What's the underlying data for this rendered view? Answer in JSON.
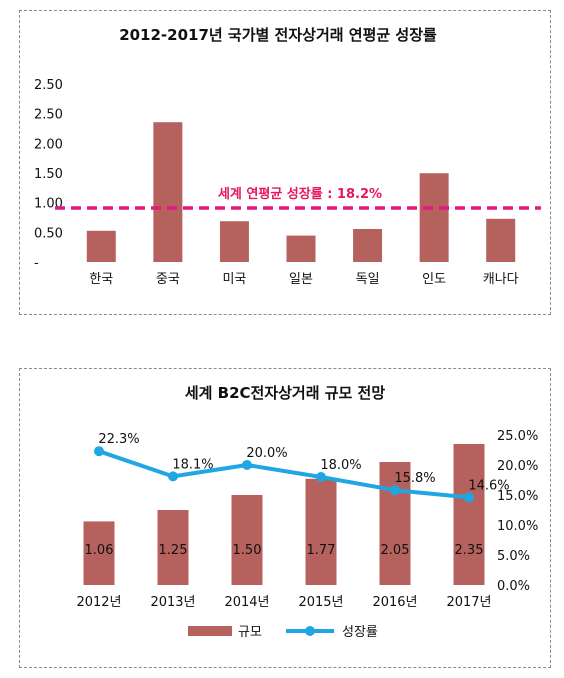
{
  "chart_data": [
    {
      "type": "bar",
      "title": "2012-2017년 국가별 전자상거래 연평균 성장률",
      "categories": [
        "한국",
        "중국",
        "미국",
        "일본",
        "독일",
        "인도",
        "캐나다"
      ],
      "values": [
        0.52,
        2.33,
        0.68,
        0.44,
        0.55,
        1.48,
        0.72
      ],
      "ylim": [
        0,
        2.5
      ],
      "ytick_labels": [
        "-",
        "0.50",
        "1.00",
        "1.50",
        "2.00",
        "2.50",
        "2.50"
      ],
      "reference_line": {
        "value": 0.9,
        "label": "세계 연평균 성장률 : 18.2%",
        "color": "#e8177d"
      },
      "bar_color": "#b5625e",
      "grid": false
    },
    {
      "type": "bar",
      "title": "세계 B2C전자상거래 규모 전망",
      "categories": [
        "2012년",
        "2013년",
        "2014년",
        "2015년",
        "2016년",
        "2017년"
      ],
      "series": [
        {
          "name": "규모",
          "type": "bar",
          "axis": "left",
          "values": [
            1.06,
            1.25,
            1.5,
            1.77,
            2.05,
            2.35
          ],
          "labels": [
            "1.06",
            "1.25",
            "1.50",
            "1.77",
            "2.05",
            "2.35"
          ],
          "color": "#b5625e"
        },
        {
          "name": "성장률",
          "type": "line",
          "axis": "right",
          "values": [
            22.3,
            18.1,
            20.0,
            18.0,
            15.8,
            14.6
          ],
          "labels": [
            "22.3%",
            "18.1%",
            "20.0%",
            "18.0%",
            "15.8%",
            "14.6%"
          ],
          "color": "#20a7e3"
        }
      ],
      "y_left_lim": [
        0,
        2.35
      ],
      "y_right_lim": [
        0,
        25
      ],
      "y_right_tick_labels": [
        "0.0%",
        "5.0%",
        "10.0%",
        "15.0%",
        "20.0%",
        "25.0%"
      ],
      "legend_position": "bottom",
      "grid": false
    }
  ]
}
